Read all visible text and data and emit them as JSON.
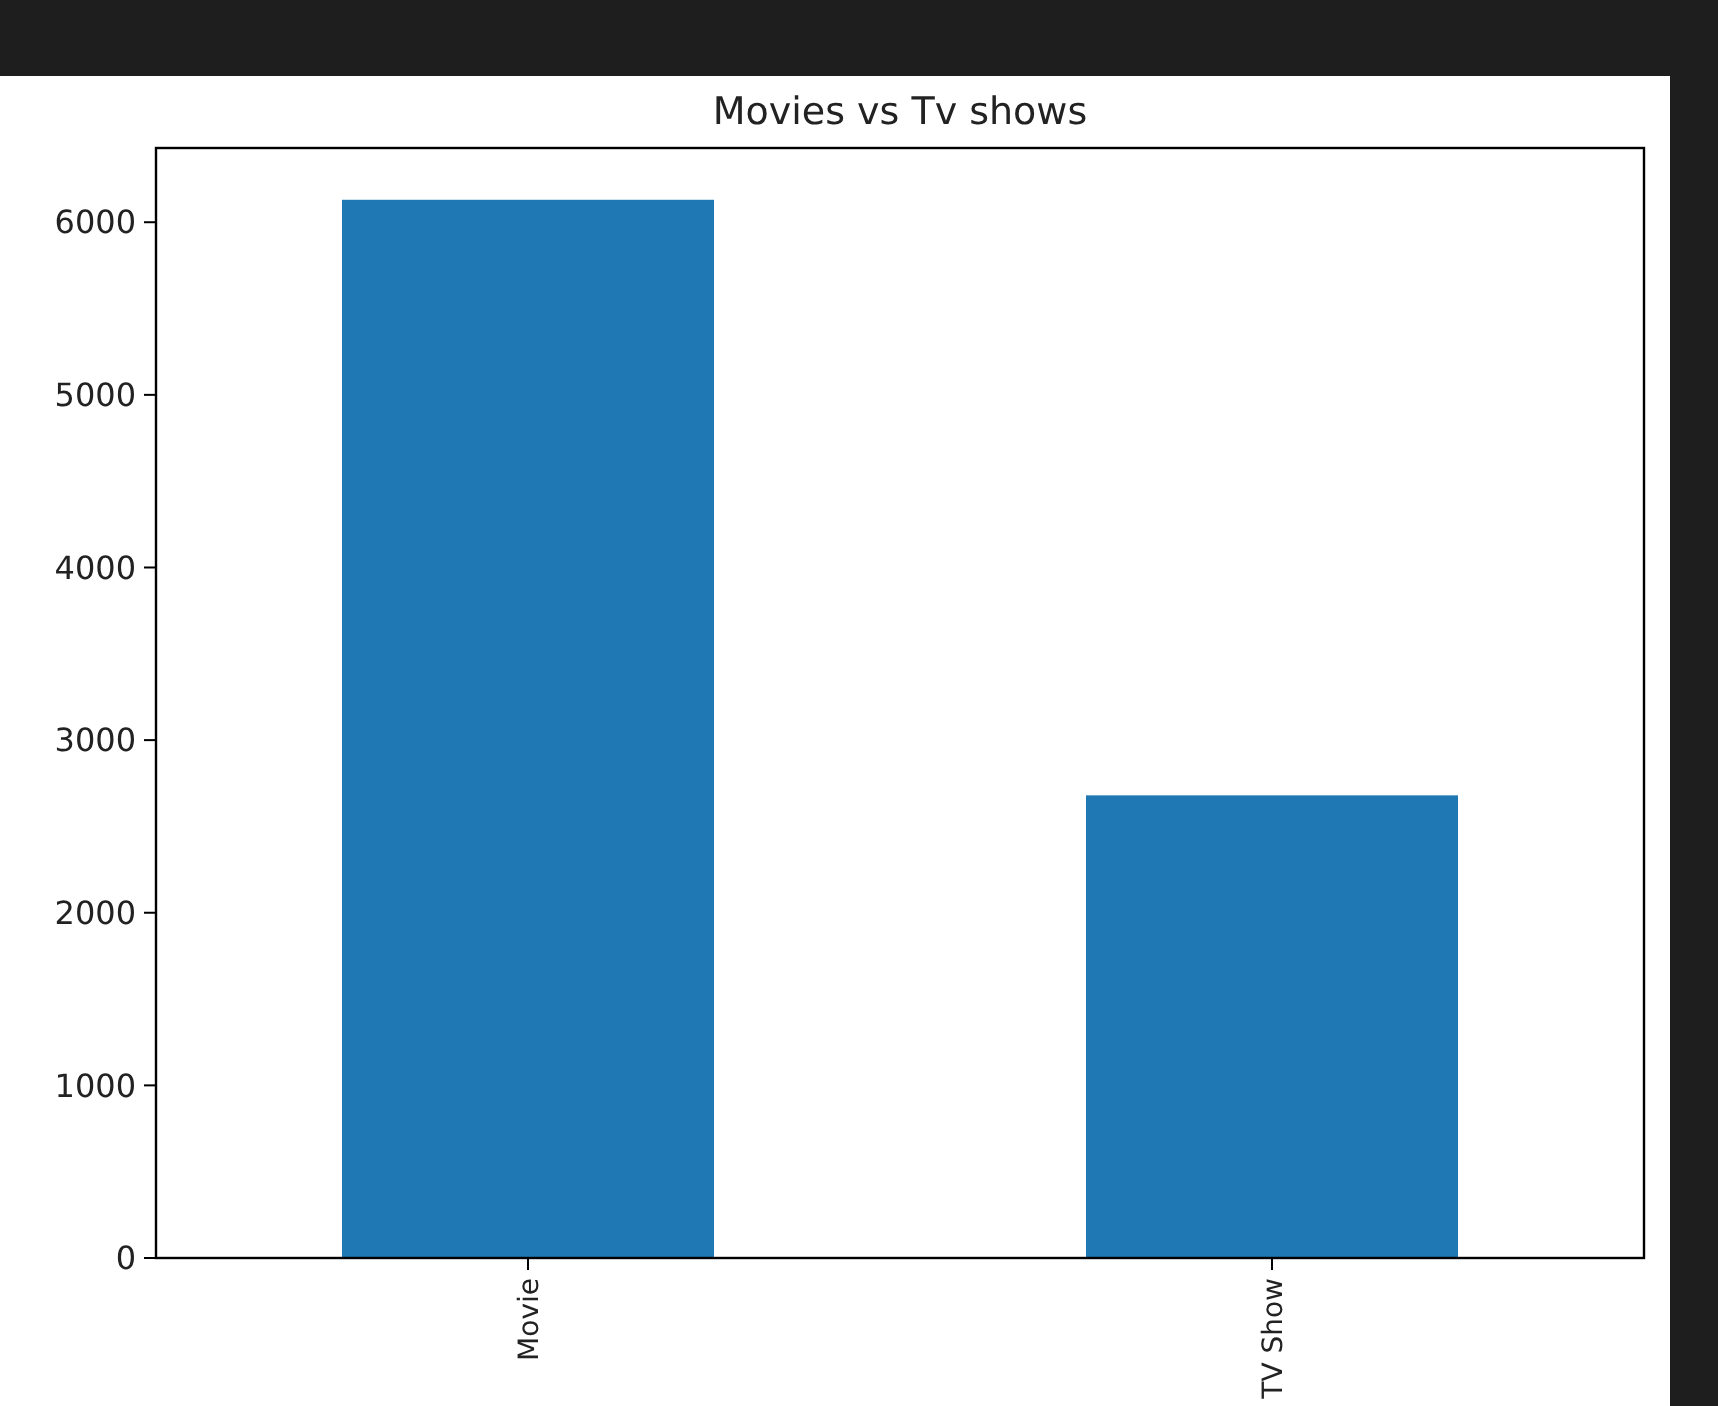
{
  "chart_data": {
    "type": "bar",
    "title": "Movies vs Tv shows",
    "categories": [
      "Movie",
      "TV Show"
    ],
    "values": [
      6130,
      2680
    ],
    "color": "#1f77b4",
    "ylim": [
      0,
      6430
    ],
    "yticks": [
      0,
      1000,
      2000,
      3000,
      4000,
      5000,
      6000
    ],
    "grid": false
  }
}
